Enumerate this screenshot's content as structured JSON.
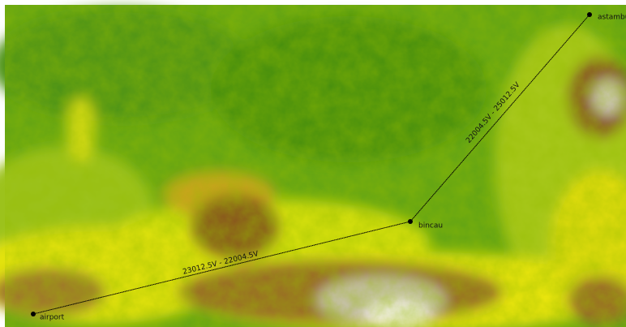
{
  "nodes": [
    {
      "label": "airport"
    },
    {
      "label": "bincau"
    },
    {
      "label": "astambu"
    }
  ],
  "edges": [
    {
      "label": "23012.5V - 22004.5V"
    },
    {
      "label": "22004.5V - 25012.5V"
    }
  ]
}
